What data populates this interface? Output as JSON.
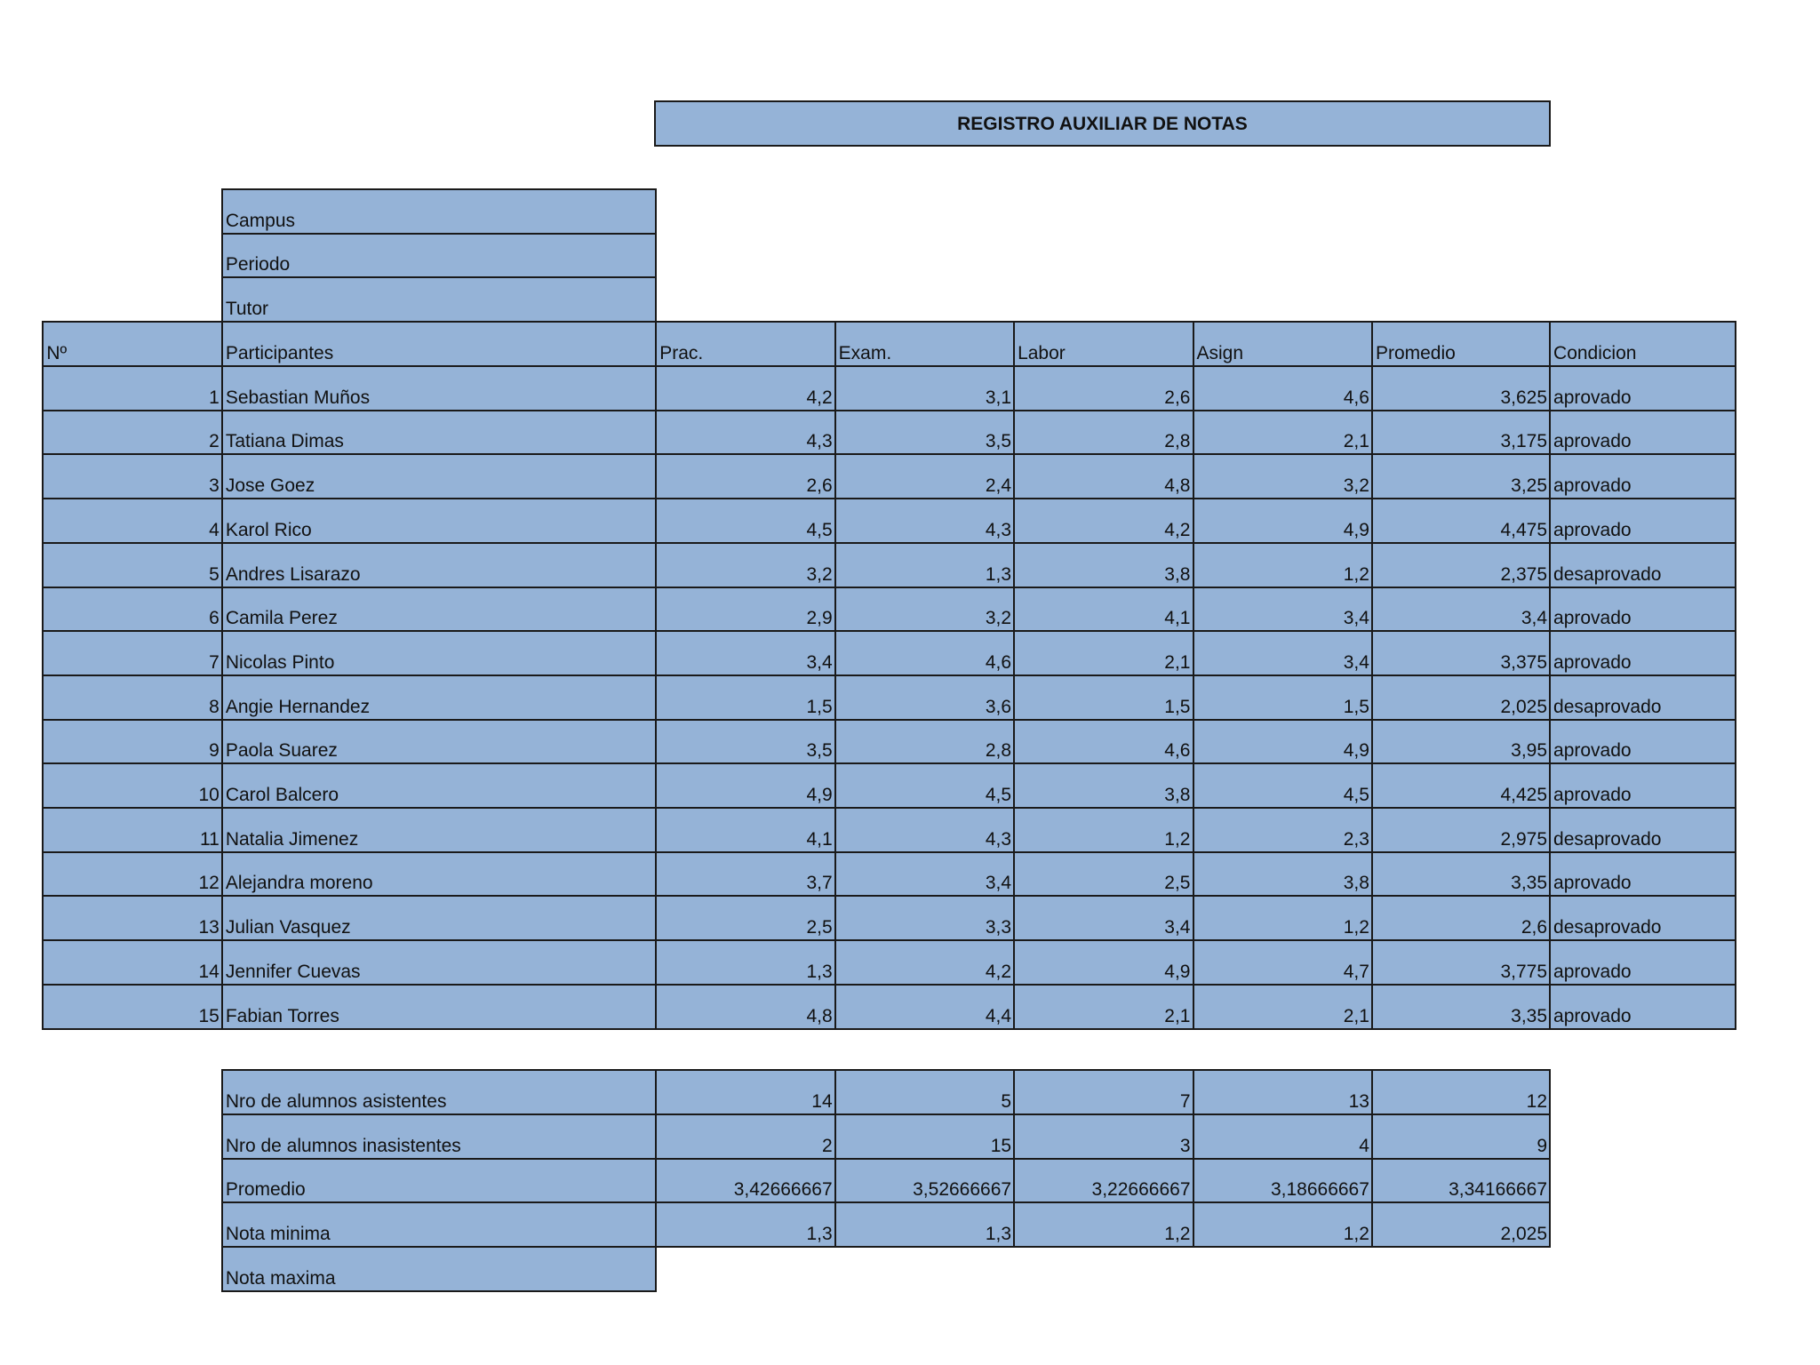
{
  "title": "REGISTRO AUXILIAR DE NOTAS",
  "info_labels": [
    "Campus",
    "Periodo",
    "Tutor"
  ],
  "headers": {
    "num": "Nº",
    "participantes": "Participantes",
    "prac": "Prac.",
    "exam": "Exam.",
    "labor": "Labor",
    "asign": "Asign",
    "promedio": "Promedio",
    "condicion": "Condicion"
  },
  "rows": [
    {
      "n": "1",
      "name": "Sebastian Muños",
      "prac": "4,2",
      "exam": "3,1",
      "labor": "2,6",
      "asign": "4,6",
      "prom": "3,625",
      "cond": "aprovado"
    },
    {
      "n": "2",
      "name": "Tatiana Dimas",
      "prac": "4,3",
      "exam": "3,5",
      "labor": "2,8",
      "asign": "2,1",
      "prom": "3,175",
      "cond": "aprovado"
    },
    {
      "n": "3",
      "name": "Jose Goez",
      "prac": "2,6",
      "exam": "2,4",
      "labor": "4,8",
      "asign": "3,2",
      "prom": "3,25",
      "cond": "aprovado"
    },
    {
      "n": "4",
      "name": "Karol Rico",
      "prac": "4,5",
      "exam": "4,3",
      "labor": "4,2",
      "asign": "4,9",
      "prom": "4,475",
      "cond": "aprovado"
    },
    {
      "n": "5",
      "name": "Andres Lisarazo",
      "prac": "3,2",
      "exam": "1,3",
      "labor": "3,8",
      "asign": "1,2",
      "prom": "2,375",
      "cond": "desaprovado"
    },
    {
      "n": "6",
      "name": "Camila Perez",
      "prac": "2,9",
      "exam": "3,2",
      "labor": "4,1",
      "asign": "3,4",
      "prom": "3,4",
      "cond": "aprovado"
    },
    {
      "n": "7",
      "name": "Nicolas Pinto",
      "prac": "3,4",
      "exam": "4,6",
      "labor": "2,1",
      "asign": "3,4",
      "prom": "3,375",
      "cond": "aprovado"
    },
    {
      "n": "8",
      "name": "Angie Hernandez",
      "prac": "1,5",
      "exam": "3,6",
      "labor": "1,5",
      "asign": "1,5",
      "prom": "2,025",
      "cond": "desaprovado"
    },
    {
      "n": "9",
      "name": "Paola Suarez",
      "prac": "3,5",
      "exam": "2,8",
      "labor": "4,6",
      "asign": "4,9",
      "prom": "3,95",
      "cond": "aprovado"
    },
    {
      "n": "10",
      "name": "Carol Balcero",
      "prac": "4,9",
      "exam": "4,5",
      "labor": "3,8",
      "asign": "4,5",
      "prom": "4,425",
      "cond": "aprovado"
    },
    {
      "n": "11",
      "name": "Natalia Jimenez",
      "prac": "4,1",
      "exam": "4,3",
      "labor": "1,2",
      "asign": "2,3",
      "prom": "2,975",
      "cond": "desaprovado"
    },
    {
      "n": "12",
      "name": "Alejandra moreno",
      "prac": "3,7",
      "exam": "3,4",
      "labor": "2,5",
      "asign": "3,8",
      "prom": "3,35",
      "cond": "aprovado"
    },
    {
      "n": "13",
      "name": "Julian Vasquez",
      "prac": "2,5",
      "exam": "3,3",
      "labor": "3,4",
      "asign": "1,2",
      "prom": "2,6",
      "cond": "desaprovado"
    },
    {
      "n": "14",
      "name": "Jennifer Cuevas",
      "prac": "1,3",
      "exam": "4,2",
      "labor": "4,9",
      "asign": "4,7",
      "prom": "3,775",
      "cond": "aprovado"
    },
    {
      "n": "15",
      "name": "Fabian Torres",
      "prac": "4,8",
      "exam": "4,4",
      "labor": "2,1",
      "asign": "2,1",
      "prom": "3,35",
      "cond": "aprovado"
    }
  ],
  "summary": [
    {
      "label": "Nro de alumnos  asistentes",
      "values": [
        "14",
        "5",
        "7",
        "13",
        "12"
      ]
    },
    {
      "label": "Nro  de alumnos  inasistentes",
      "values": [
        "2",
        "15",
        "3",
        "4",
        "9"
      ]
    },
    {
      "label": "Promedio",
      "values": [
        "3,42666667",
        "3,52666667",
        "3,22666667",
        "3,18666667",
        "3,34166667"
      ]
    },
    {
      "label": "Nota minima",
      "values": [
        "1,3",
        "1,3",
        "1,2",
        "1,2",
        "2,025"
      ]
    },
    {
      "label": "Nota maxima",
      "values": []
    }
  ],
  "colors": {
    "cell_fill": "#95b3d7",
    "border": "#1a1a1a"
  }
}
